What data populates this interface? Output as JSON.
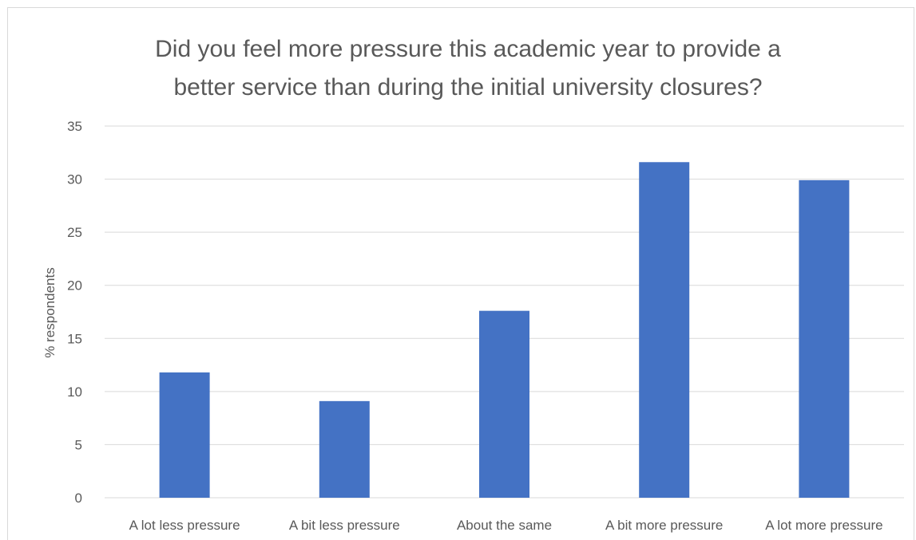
{
  "chart_data": {
    "type": "bar",
    "title_lines": [
      "Did you feel more pressure this academic year to provide a",
      "better service than during the initial university closures?"
    ],
    "xlabel": "",
    "ylabel": "% respondents",
    "categories": [
      "A lot less pressure",
      "A bit less pressure",
      "About the same",
      "A bit more pressure",
      "A lot more pressure"
    ],
    "values": [
      11.8,
      9.1,
      17.6,
      31.6,
      29.9
    ],
    "ylim": [
      0,
      35
    ],
    "yticks": [
      0,
      5,
      10,
      15,
      20,
      25,
      30,
      35
    ],
    "grid": true,
    "legend": "none",
    "colors": {
      "bar": "#4472C4",
      "grid": "#d9d9d9",
      "text": "#595959"
    }
  }
}
